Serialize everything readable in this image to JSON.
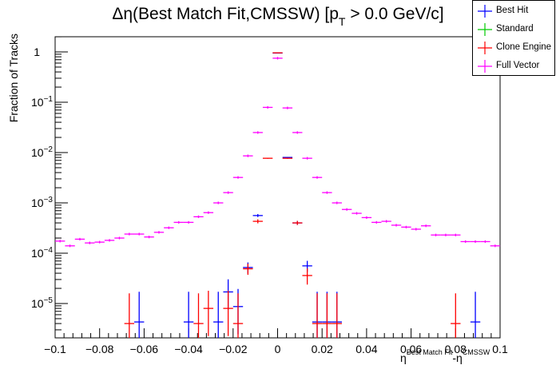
{
  "chart_data": {
    "type": "scatter",
    "title": "Δη(Best Match Fit,CMSSW) [p",
    "title_subscript": "T",
    "title_suffix": " > 0.0 GeV/c]",
    "xlabel_parts": [
      "η",
      "Best Match Fit",
      "-η",
      "CMSSW"
    ],
    "ylabel": "Fraction of Tracks",
    "xlim": [
      -0.1,
      0.1
    ],
    "ylim": [
      2.1e-06,
      2.0
    ],
    "yscale": "log",
    "grid": false,
    "legend_position": "top-right",
    "nbins": 45,
    "x_ticks": [
      {
        "value": -0.1,
        "label": "−0.1"
      },
      {
        "value": -0.08,
        "label": "−0.08"
      },
      {
        "value": -0.06,
        "label": "−0.06"
      },
      {
        "value": -0.04,
        "label": "−0.04"
      },
      {
        "value": -0.02,
        "label": "−0.02"
      },
      {
        "value": 0,
        "label": "0"
      },
      {
        "value": 0.02,
        "label": "0.02"
      },
      {
        "value": 0.04,
        "label": "0.04"
      },
      {
        "value": 0.06,
        "label": "0.06"
      },
      {
        "value": 0.08,
        "label": "0.08"
      },
      {
        "value": 0.1,
        "label": "0.1"
      }
    ],
    "y_ticks": [
      {
        "value": 1,
        "label": "1",
        "exp": ""
      },
      {
        "value": 0.1,
        "label": "10",
        "exp": "−1"
      },
      {
        "value": 0.01,
        "label": "10",
        "exp": "−2"
      },
      {
        "value": 0.001,
        "label": "10",
        "exp": "−3"
      },
      {
        "value": 0.0001,
        "label": "10",
        "exp": "−4"
      },
      {
        "value": 1e-05,
        "label": "10",
        "exp": "−5"
      }
    ],
    "series": [
      {
        "name": "Best Hit",
        "color": "#0000ff",
        "points": [
          {
            "bin": 8,
            "y": 4.3e-06,
            "err_lo": 1.0,
            "err_hi": 0.6
          },
          {
            "bin": 13,
            "y": 4.3e-06,
            "err_lo": 1.0,
            "err_hi": 0.6
          },
          {
            "bin": 16,
            "y": 4.3e-06,
            "err_lo": 1.0,
            "err_hi": 0.6
          },
          {
            "bin": 17,
            "y": 1.7e-05,
            "err_lo": 0.35,
            "err_hi": 0.25
          },
          {
            "bin": 18,
            "y": 8.7e-06,
            "err_lo": 0.55,
            "err_hi": 0.35
          },
          {
            "bin": 19,
            "y": 5.2e-05,
            "err_lo": 0.12,
            "err_hi": 0.1
          },
          {
            "bin": 20,
            "y": 0.00056,
            "err_lo": 0.03,
            "err_hi": 0.03
          },
          {
            "bin": 22,
            "y": 0.95,
            "err_lo": 0.0,
            "err_hi": 0.0
          },
          {
            "bin": 23,
            "y": 0.008,
            "err_lo": 0.01,
            "err_hi": 0.01
          },
          {
            "bin": 24,
            "y": 0.0004,
            "err_lo": 0.04,
            "err_hi": 0.04
          },
          {
            "bin": 25,
            "y": 5.6e-05,
            "err_lo": 0.12,
            "err_hi": 0.1
          },
          {
            "bin": 26,
            "y": 4.3e-06,
            "err_lo": 1.0,
            "err_hi": 0.6
          },
          {
            "bin": 27,
            "y": 4.3e-06,
            "err_lo": 1.0,
            "err_hi": 0.6
          },
          {
            "bin": 28,
            "y": 4.3e-06,
            "err_lo": 1.0,
            "err_hi": 0.6
          },
          {
            "bin": 42,
            "y": 4.3e-06,
            "err_lo": 1.0,
            "err_hi": 0.6
          }
        ]
      },
      {
        "name": "Standard",
        "color": "#00cc00",
        "points": []
      },
      {
        "name": "Clone Engine",
        "color": "#ff0000",
        "points": [
          {
            "bin": 7,
            "y": 4e-06,
            "err_lo": 1.0,
            "err_hi": 0.6
          },
          {
            "bin": 14,
            "y": 4e-06,
            "err_lo": 1.0,
            "err_hi": 0.6
          },
          {
            "bin": 15,
            "y": 8e-06,
            "err_lo": 0.55,
            "err_hi": 0.35
          },
          {
            "bin": 17,
            "y": 8e-06,
            "err_lo": 0.55,
            "err_hi": 0.35
          },
          {
            "bin": 18,
            "y": 4e-06,
            "err_lo": 1.0,
            "err_hi": 0.6
          },
          {
            "bin": 19,
            "y": 4.9e-05,
            "err_lo": 0.12,
            "err_hi": 0.1
          },
          {
            "bin": 20,
            "y": 0.00043,
            "err_lo": 0.04,
            "err_hi": 0.04
          },
          {
            "bin": 21,
            "y": 0.0077,
            "err_lo": 0.01,
            "err_hi": 0.01
          },
          {
            "bin": 22,
            "y": 0.96,
            "err_lo": 0.0,
            "err_hi": 0.0
          },
          {
            "bin": 23,
            "y": 0.0077,
            "err_lo": 0.01,
            "err_hi": 0.01
          },
          {
            "bin": 24,
            "y": 0.0004,
            "err_lo": 0.04,
            "err_hi": 0.04
          },
          {
            "bin": 25,
            "y": 3.6e-05,
            "err_lo": 0.18,
            "err_hi": 0.14
          },
          {
            "bin": 26,
            "y": 4e-06,
            "err_lo": 1.0,
            "err_hi": 0.6
          },
          {
            "bin": 27,
            "y": 4e-06,
            "err_lo": 1.0,
            "err_hi": 0.6
          },
          {
            "bin": 28,
            "y": 4e-06,
            "err_lo": 1.0,
            "err_hi": 0.6
          },
          {
            "bin": 40,
            "y": 4e-06,
            "err_lo": 1.0,
            "err_hi": 0.6
          }
        ]
      },
      {
        "name": "Full Vector",
        "color": "#ff00ff",
        "values": [
          0.000174,
          0.00014,
          0.00019,
          0.00016,
          0.000166,
          0.00018,
          0.0002,
          0.00024,
          0.00024,
          0.00021,
          0.00026,
          0.00032,
          0.00041,
          0.00041,
          0.00053,
          0.00064,
          0.001,
          0.0016,
          0.0032,
          0.0086,
          0.025,
          0.079,
          0.75,
          0.077,
          0.025,
          0.0077,
          0.0032,
          0.0016,
          0.001,
          0.00074,
          0.00062,
          0.00051,
          0.00041,
          0.00043,
          0.00036,
          0.00033,
          0.0003,
          0.00035,
          0.00023,
          0.00023,
          0.00023,
          0.00017,
          0.00017,
          0.00017,
          0.00014
        ],
        "rel_err": 0.06
      }
    ]
  },
  "legend": {
    "items": [
      {
        "label": "Best Hit",
        "color": "#0000ff"
      },
      {
        "label": "Standard",
        "color": "#00cc00"
      },
      {
        "label": "Clone Engine",
        "color": "#ff0000"
      },
      {
        "label": "Full Vector",
        "color": "#ff00ff"
      }
    ]
  }
}
